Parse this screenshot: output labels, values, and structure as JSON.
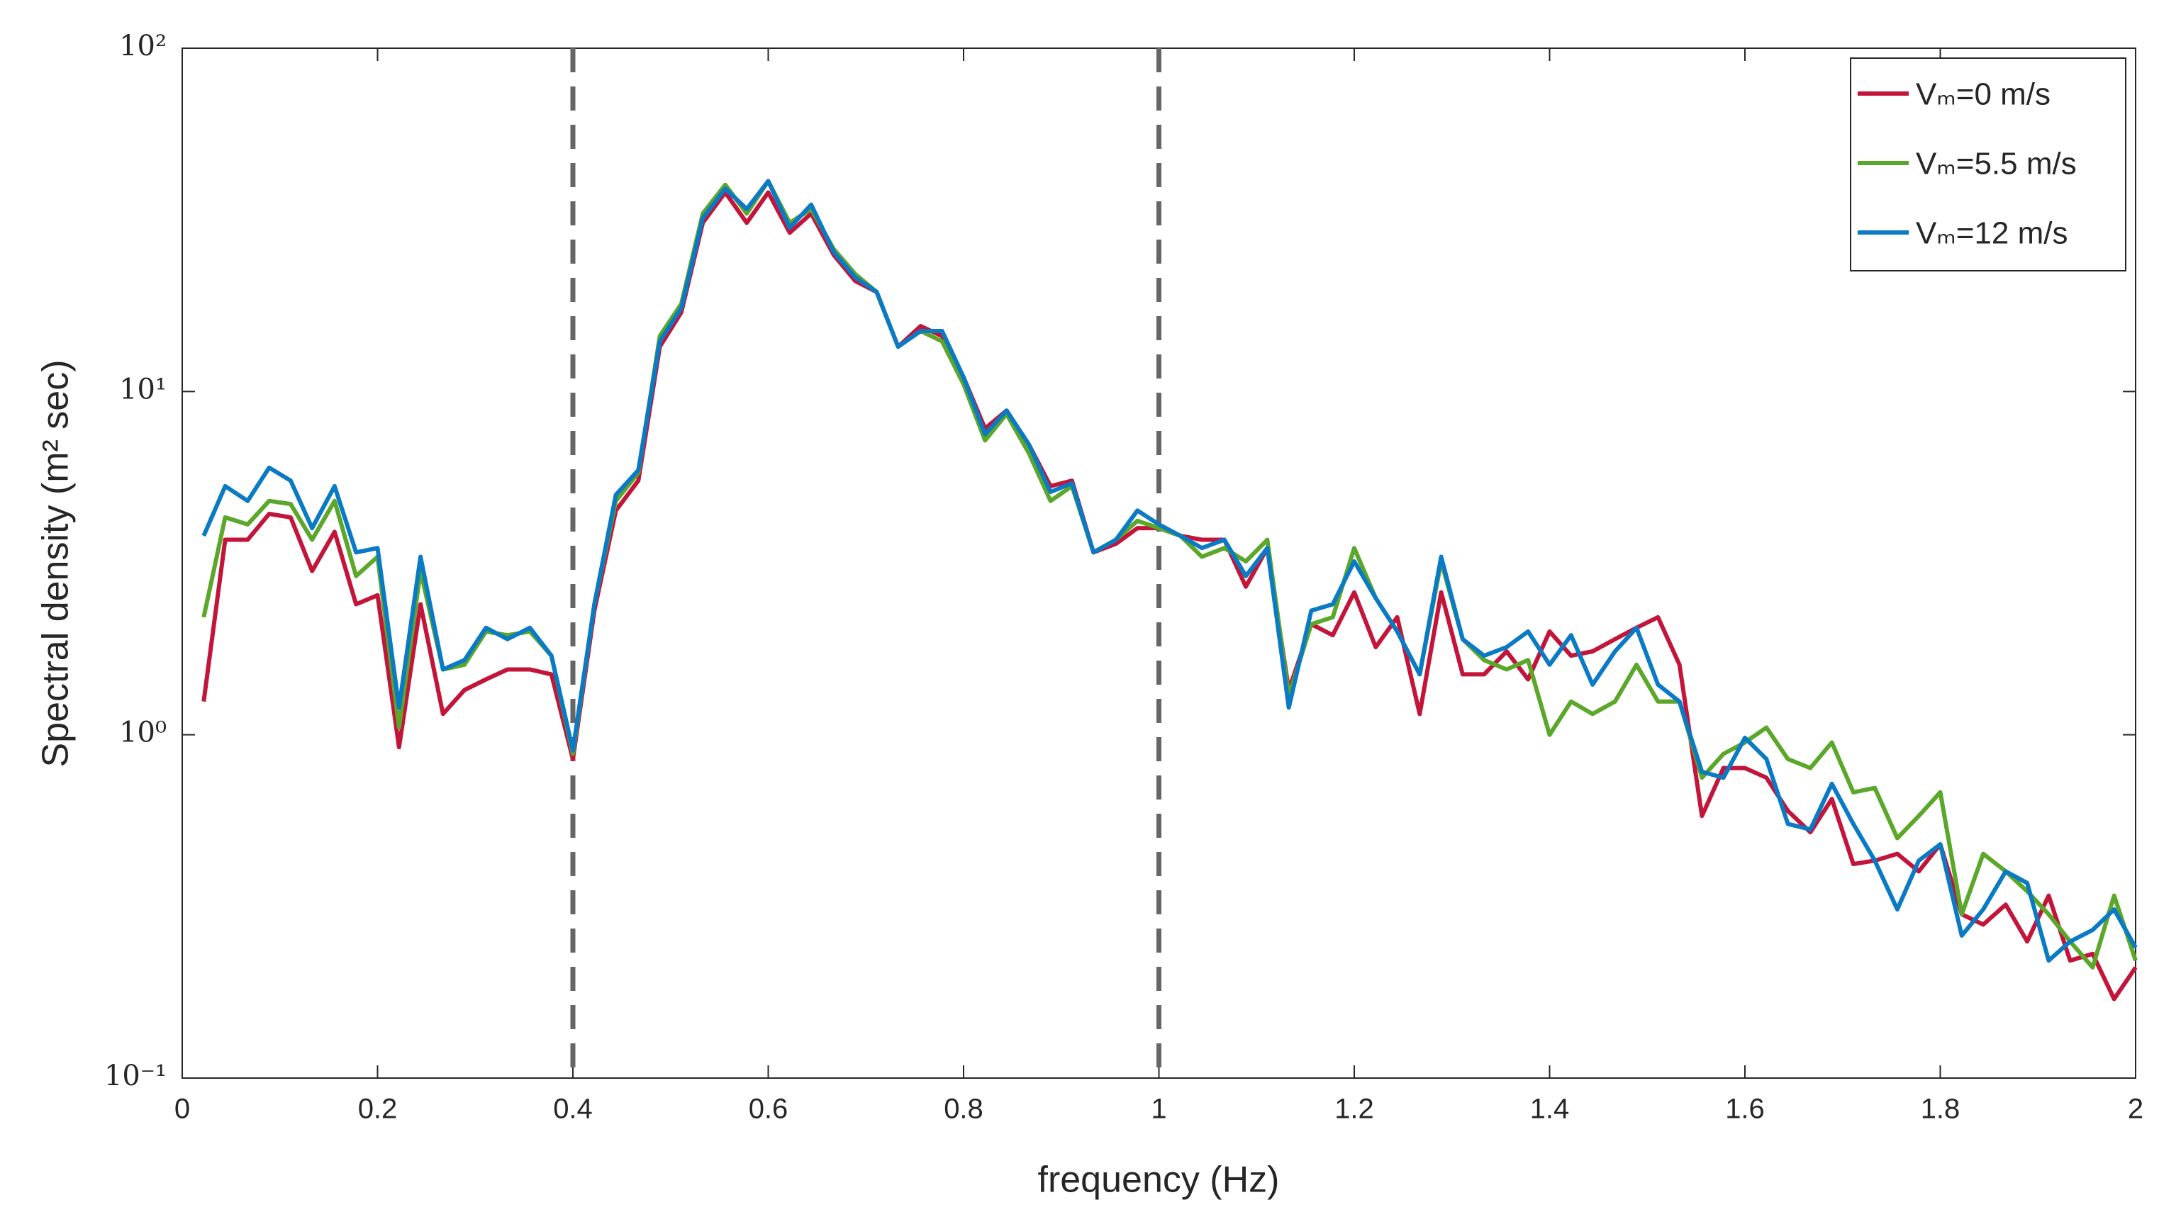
{
  "chart_data": {
    "type": "line",
    "xlabel": "frequency (Hz)",
    "ylabel": "Spectral density (m² sec)",
    "yscale": "log",
    "xlim": [
      0,
      2
    ],
    "ylim": [
      0.1,
      100
    ],
    "xticks": [
      0,
      0.2,
      0.4,
      0.6,
      0.8,
      1,
      1.2,
      1.4,
      1.6,
      1.8,
      2
    ],
    "yticks": [
      {
        "value": 0.1,
        "label": "10⁻¹"
      },
      {
        "value": 1,
        "label": "10⁰"
      },
      {
        "value": 10,
        "label": "10¹"
      },
      {
        "value": 100,
        "label": "10²"
      }
    ],
    "legend": "upper right",
    "vlines": [
      0.4,
      1
    ],
    "vline_color": "#666666",
    "x": [
      0.022,
      0.044,
      0.067,
      0.089,
      0.111,
      0.133,
      0.156,
      0.178,
      0.2,
      0.222,
      0.244,
      0.267,
      0.289,
      0.311,
      0.333,
      0.356,
      0.378,
      0.4,
      0.422,
      0.444,
      0.467,
      0.489,
      0.511,
      0.533,
      0.556,
      0.578,
      0.6,
      0.622,
      0.644,
      0.667,
      0.689,
      0.711,
      0.733,
      0.756,
      0.778,
      0.8,
      0.822,
      0.844,
      0.867,
      0.889,
      0.911,
      0.933,
      0.956,
      0.978,
      1,
      1.022,
      1.044,
      1.067,
      1.089,
      1.111,
      1.133,
      1.156,
      1.178,
      1.2,
      1.222,
      1.244,
      1.267,
      1.289,
      1.311,
      1.333,
      1.356,
      1.378,
      1.4,
      1.422,
      1.444,
      1.467,
      1.489,
      1.511,
      1.533,
      1.556,
      1.578,
      1.6,
      1.622,
      1.644,
      1.667,
      1.689,
      1.711,
      1.733,
      1.756,
      1.778,
      1.8,
      1.822,
      1.844,
      1.867,
      1.889,
      1.911,
      1.933,
      1.956,
      1.978,
      2
    ],
    "series": [
      {
        "name": "Vₘ=0 m/s",
        "color": "#c3143a",
        "values": [
          1.25,
          3.7,
          3.7,
          4.4,
          4.3,
          3.0,
          3.9,
          2.4,
          2.55,
          0.92,
          2.4,
          1.15,
          1.35,
          1.45,
          1.55,
          1.55,
          1.5,
          0.85,
          2.3,
          4.5,
          5.5,
          13.5,
          17,
          31,
          38,
          31,
          38,
          29,
          33,
          25,
          21,
          19.5,
          13.5,
          15.5,
          14.5,
          11,
          7.8,
          8.8,
          7,
          5.3,
          5.5,
          3.4,
          3.6,
          4.0,
          4.0,
          3.8,
          3.7,
          3.7,
          2.7,
          3.5,
          1.35,
          2.1,
          1.95,
          2.6,
          1.8,
          2.2,
          1.15,
          2.6,
          1.5,
          1.5,
          1.75,
          1.45,
          2.0,
          1.7,
          1.75,
          1.9,
          2.05,
          2.2,
          1.6,
          0.58,
          0.8,
          0.8,
          0.75,
          0.6,
          0.52,
          0.65,
          0.42,
          0.43,
          0.45,
          0.4,
          0.48,
          0.3,
          0.28,
          0.32,
          0.25,
          0.34,
          0.22,
          0.23,
          0.17,
          0.21
        ]
      },
      {
        "name": "Vₘ=5.5 m/s",
        "color": "#5aa72a",
        "values": [
          2.2,
          4.3,
          4.1,
          4.8,
          4.7,
          3.7,
          4.8,
          2.9,
          3.3,
          1.05,
          3.0,
          1.55,
          1.6,
          2.0,
          1.95,
          2.0,
          1.7,
          0.88,
          2.4,
          4.8,
          5.8,
          14.5,
          18,
          33,
          40,
          33,
          41,
          31,
          34,
          26,
          22,
          19.5,
          13.5,
          15,
          14,
          10.5,
          7.2,
          8.6,
          6.6,
          4.8,
          5.3,
          3.4,
          3.7,
          4.2,
          4.0,
          3.8,
          3.3,
          3.5,
          3.2,
          3.7,
          1.3,
          2.1,
          2.2,
          3.5,
          2.5,
          2.0,
          1.5,
          3.2,
          1.9,
          1.65,
          1.55,
          1.65,
          1.0,
          1.25,
          1.15,
          1.25,
          1.6,
          1.25,
          1.25,
          0.75,
          0.88,
          0.95,
          1.05,
          0.85,
          0.8,
          0.95,
          0.68,
          0.7,
          0.5,
          0.58,
          0.68,
          0.3,
          0.45,
          0.4,
          0.35,
          0.3,
          0.25,
          0.21,
          0.34,
          0.22
        ]
      },
      {
        "name": "Vₘ=12 m/s",
        "color": "#0a7ac4",
        "values": [
          3.8,
          5.3,
          4.8,
          6.0,
          5.5,
          4.0,
          5.3,
          3.4,
          3.5,
          1.2,
          3.3,
          1.55,
          1.65,
          2.05,
          1.9,
          2.05,
          1.7,
          0.9,
          2.4,
          5.0,
          5.9,
          14,
          17.5,
          32,
          39,
          34,
          41,
          30,
          35,
          25.5,
          21.5,
          19.5,
          13.5,
          15,
          15,
          11,
          7.5,
          8.8,
          7,
          5.1,
          5.4,
          3.4,
          3.7,
          4.5,
          4.1,
          3.8,
          3.5,
          3.7,
          2.9,
          3.5,
          1.2,
          2.3,
          2.4,
          3.2,
          2.5,
          2.0,
          1.5,
          3.3,
          1.9,
          1.7,
          1.8,
          2.0,
          1.6,
          1.95,
          1.4,
          1.75,
          2.05,
          1.4,
          1.25,
          0.78,
          0.75,
          0.98,
          0.85,
          0.55,
          0.53,
          0.72,
          0.55,
          0.43,
          0.31,
          0.43,
          0.48,
          0.26,
          0.31,
          0.4,
          0.37,
          0.22,
          0.25,
          0.27,
          0.31,
          0.24
        ]
      }
    ]
  }
}
